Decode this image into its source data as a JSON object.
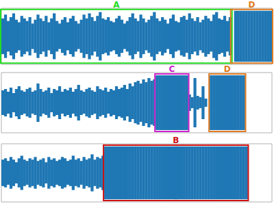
{
  "chart_data": [
    {
      "type": "waveform",
      "color": "#1f77b4",
      "ylim": [
        -1.1,
        1.1
      ],
      "values": [
        0.7,
        0.85,
        0.6,
        0.75,
        0.9,
        0.65,
        0.55,
        0.8,
        0.7,
        0.6,
        0.75,
        0.5,
        0.65,
        0.85,
        0.7,
        0.6,
        0.8,
        0.55,
        0.7,
        0.9,
        0.6,
        0.5,
        0.65,
        0.75,
        0.55,
        0.7,
        0.8,
        0.6,
        0.5,
        0.65,
        0.85,
        0.7,
        0.9,
        0.75,
        0.6,
        0.8,
        0.95,
        0.7,
        0.65,
        0.75,
        0.6,
        0.55,
        0.7,
        0.8,
        0.65,
        0.5,
        0.6,
        0.75,
        0.9,
        0.7,
        0.6,
        0.85,
        0.7,
        0.55,
        0.65,
        0.8,
        0.95,
        0.7,
        0.6,
        0.75,
        0.65,
        0.5,
        0.7,
        0.85,
        0.6,
        0.55,
        0.75,
        0.8,
        0.65,
        0.9,
        0.7,
        0.6,
        0.75,
        0.55,
        0.65,
        0.8,
        0.7,
        0.6,
        0.85,
        0.95,
        0.7,
        0.65,
        0.8,
        0.6,
        0.75,
        0,
        1,
        1,
        1,
        1,
        1,
        1,
        1,
        1,
        1,
        1,
        1,
        1,
        1,
        1
      ],
      "boxes": [
        {
          "label": "A",
          "color": "#22dd22",
          "from": 0,
          "to": 84
        },
        {
          "label": "D",
          "color": "#e07b20",
          "from": 85,
          "to": 99
        }
      ]
    },
    {
      "type": "waveform",
      "color": "#1f77b4",
      "ylim": [
        -1.1,
        1.1
      ],
      "values": [
        0.45,
        0.5,
        0.4,
        0.55,
        0.35,
        0.5,
        0.6,
        0.45,
        0.4,
        0.5,
        0.55,
        0.4,
        0.45,
        0.7,
        0.5,
        0.4,
        0.45,
        0.55,
        0.35,
        0.5,
        0.45,
        0.6,
        0.4,
        0.5,
        0.45,
        0.55,
        0.4,
        0.5,
        0.65,
        0.45,
        0.4,
        0.5,
        0.55,
        0.45,
        0.4,
        0.6,
        0.5,
        0.45,
        0.55,
        0.4,
        0.5,
        0.45,
        0.6,
        0.5,
        0.55,
        0.65,
        0.5,
        0.7,
        0.6,
        0.75,
        0.8,
        0.7,
        0.85,
        0.75,
        0.9,
        0.8,
        0.85,
        1,
        1,
        1,
        1,
        1,
        1,
        1,
        1,
        1,
        1,
        1,
        1,
        0.3,
        0.2,
        0.9,
        0.25,
        0.2,
        0.6,
        0.15,
        0,
        1,
        1,
        1,
        1,
        1,
        1,
        1,
        1,
        1,
        1,
        1,
        1,
        1,
        0,
        0,
        0,
        0,
        0,
        0,
        0,
        0,
        0,
        0
      ],
      "boxes": [
        {
          "label": "C",
          "color": "#cc22cc",
          "from": 57,
          "to": 68
        },
        {
          "label": "D",
          "color": "#e07b20",
          "from": 77,
          "to": 89
        }
      ]
    },
    {
      "type": "waveform",
      "color": "#1f77b4",
      "ylim": [
        -1.1,
        1.1
      ],
      "values": [
        0.5,
        0.55,
        0.45,
        0.6,
        0.5,
        0.4,
        0.55,
        0.65,
        0.5,
        0.45,
        0.55,
        0.5,
        0.6,
        0.45,
        0.5,
        0.55,
        0.4,
        0.6,
        0.5,
        0.55,
        0.45,
        0.5,
        0.6,
        0.55,
        0.45,
        0.5,
        0.65,
        0.5,
        0.55,
        0.45,
        0.6,
        0.5,
        0.55,
        0.7,
        0.5,
        0.6,
        0.55,
        0.65,
        1,
        1,
        1,
        1,
        1,
        1,
        1,
        1,
        1,
        1,
        1,
        1,
        1,
        1,
        1,
        1,
        1,
        1,
        1,
        1,
        1,
        1,
        1,
        1,
        1,
        1,
        1,
        1,
        1,
        1,
        1,
        1,
        1,
        1,
        1,
        1,
        1,
        1,
        1,
        1,
        1,
        1,
        1,
        1,
        1,
        1,
        1,
        1,
        1,
        1,
        1,
        1,
        1,
        0,
        0,
        0,
        0,
        0,
        0,
        0,
        0,
        0
      ],
      "boxes": [
        {
          "label": "B",
          "color": "#cc1111",
          "from": 38,
          "to": 90
        }
      ]
    }
  ]
}
